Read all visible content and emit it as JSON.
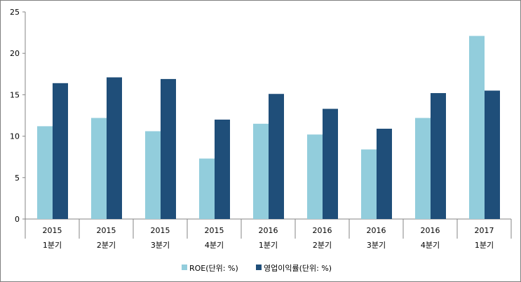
{
  "chart_data": {
    "type": "bar",
    "title": "",
    "xlabel": "",
    "ylabel": "",
    "ylim": [
      0,
      25
    ],
    "yticks": [
      0,
      5,
      10,
      15,
      20,
      25
    ],
    "categories": [
      [
        "2015",
        "1분기"
      ],
      [
        "2015",
        "2분기"
      ],
      [
        "2015",
        "3분기"
      ],
      [
        "2015",
        "4분기"
      ],
      [
        "2016",
        "1분기"
      ],
      [
        "2016",
        "2분기"
      ],
      [
        "2016",
        "3분기"
      ],
      [
        "2016",
        "4분기"
      ],
      [
        "2017",
        "1분기"
      ]
    ],
    "series": [
      {
        "name": "ROE(단위: %)",
        "color": "#92cddc",
        "values": [
          11.2,
          12.2,
          10.6,
          7.3,
          11.5,
          10.2,
          8.4,
          12.2,
          22.1
        ]
      },
      {
        "name": "영업이익률(단위: %)",
        "color": "#1f4e79",
        "values": [
          16.4,
          17.1,
          16.9,
          12.0,
          15.1,
          13.3,
          10.9,
          15.2,
          15.5
        ]
      }
    ],
    "legend": "bottom",
    "grid": false
  }
}
